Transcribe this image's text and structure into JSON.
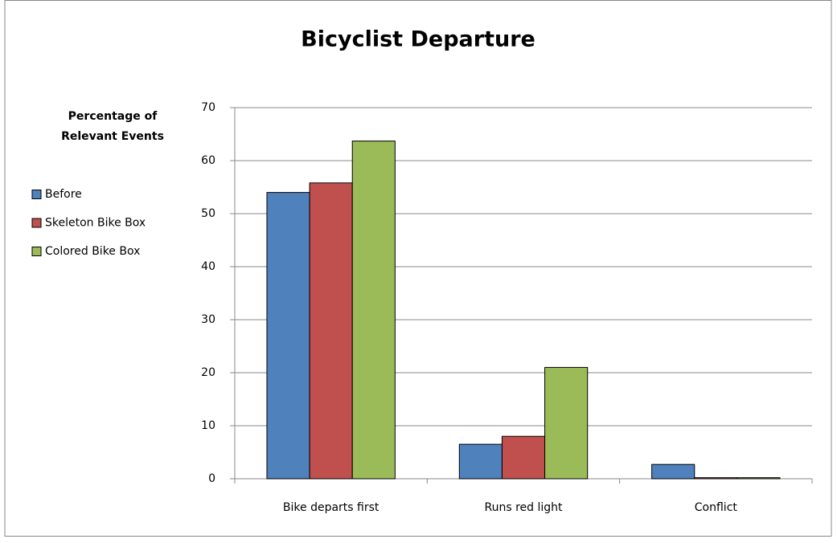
{
  "chart_data": {
    "type": "bar",
    "title": "Bicyclist Departure",
    "ylabel": "Percentage of Relevant Events",
    "categories": [
      "Bike departs first",
      "Runs red light",
      "Conflict"
    ],
    "series": [
      {
        "name": "Before",
        "color": "#4f81bd",
        "values": [
          54,
          6.5,
          2.7
        ]
      },
      {
        "name": "Skeleton Bike Box",
        "color": "#c0504d",
        "values": [
          55.8,
          8,
          0.2
        ]
      },
      {
        "name": "Colored Bike Box",
        "color": "#9bbb59",
        "values": [
          63.7,
          21,
          0.2
        ]
      }
    ],
    "ylim": [
      0,
      70
    ],
    "yticks": [
      0,
      10,
      20,
      30,
      40,
      50,
      60,
      70
    ],
    "grid": true,
    "legend": "left"
  }
}
